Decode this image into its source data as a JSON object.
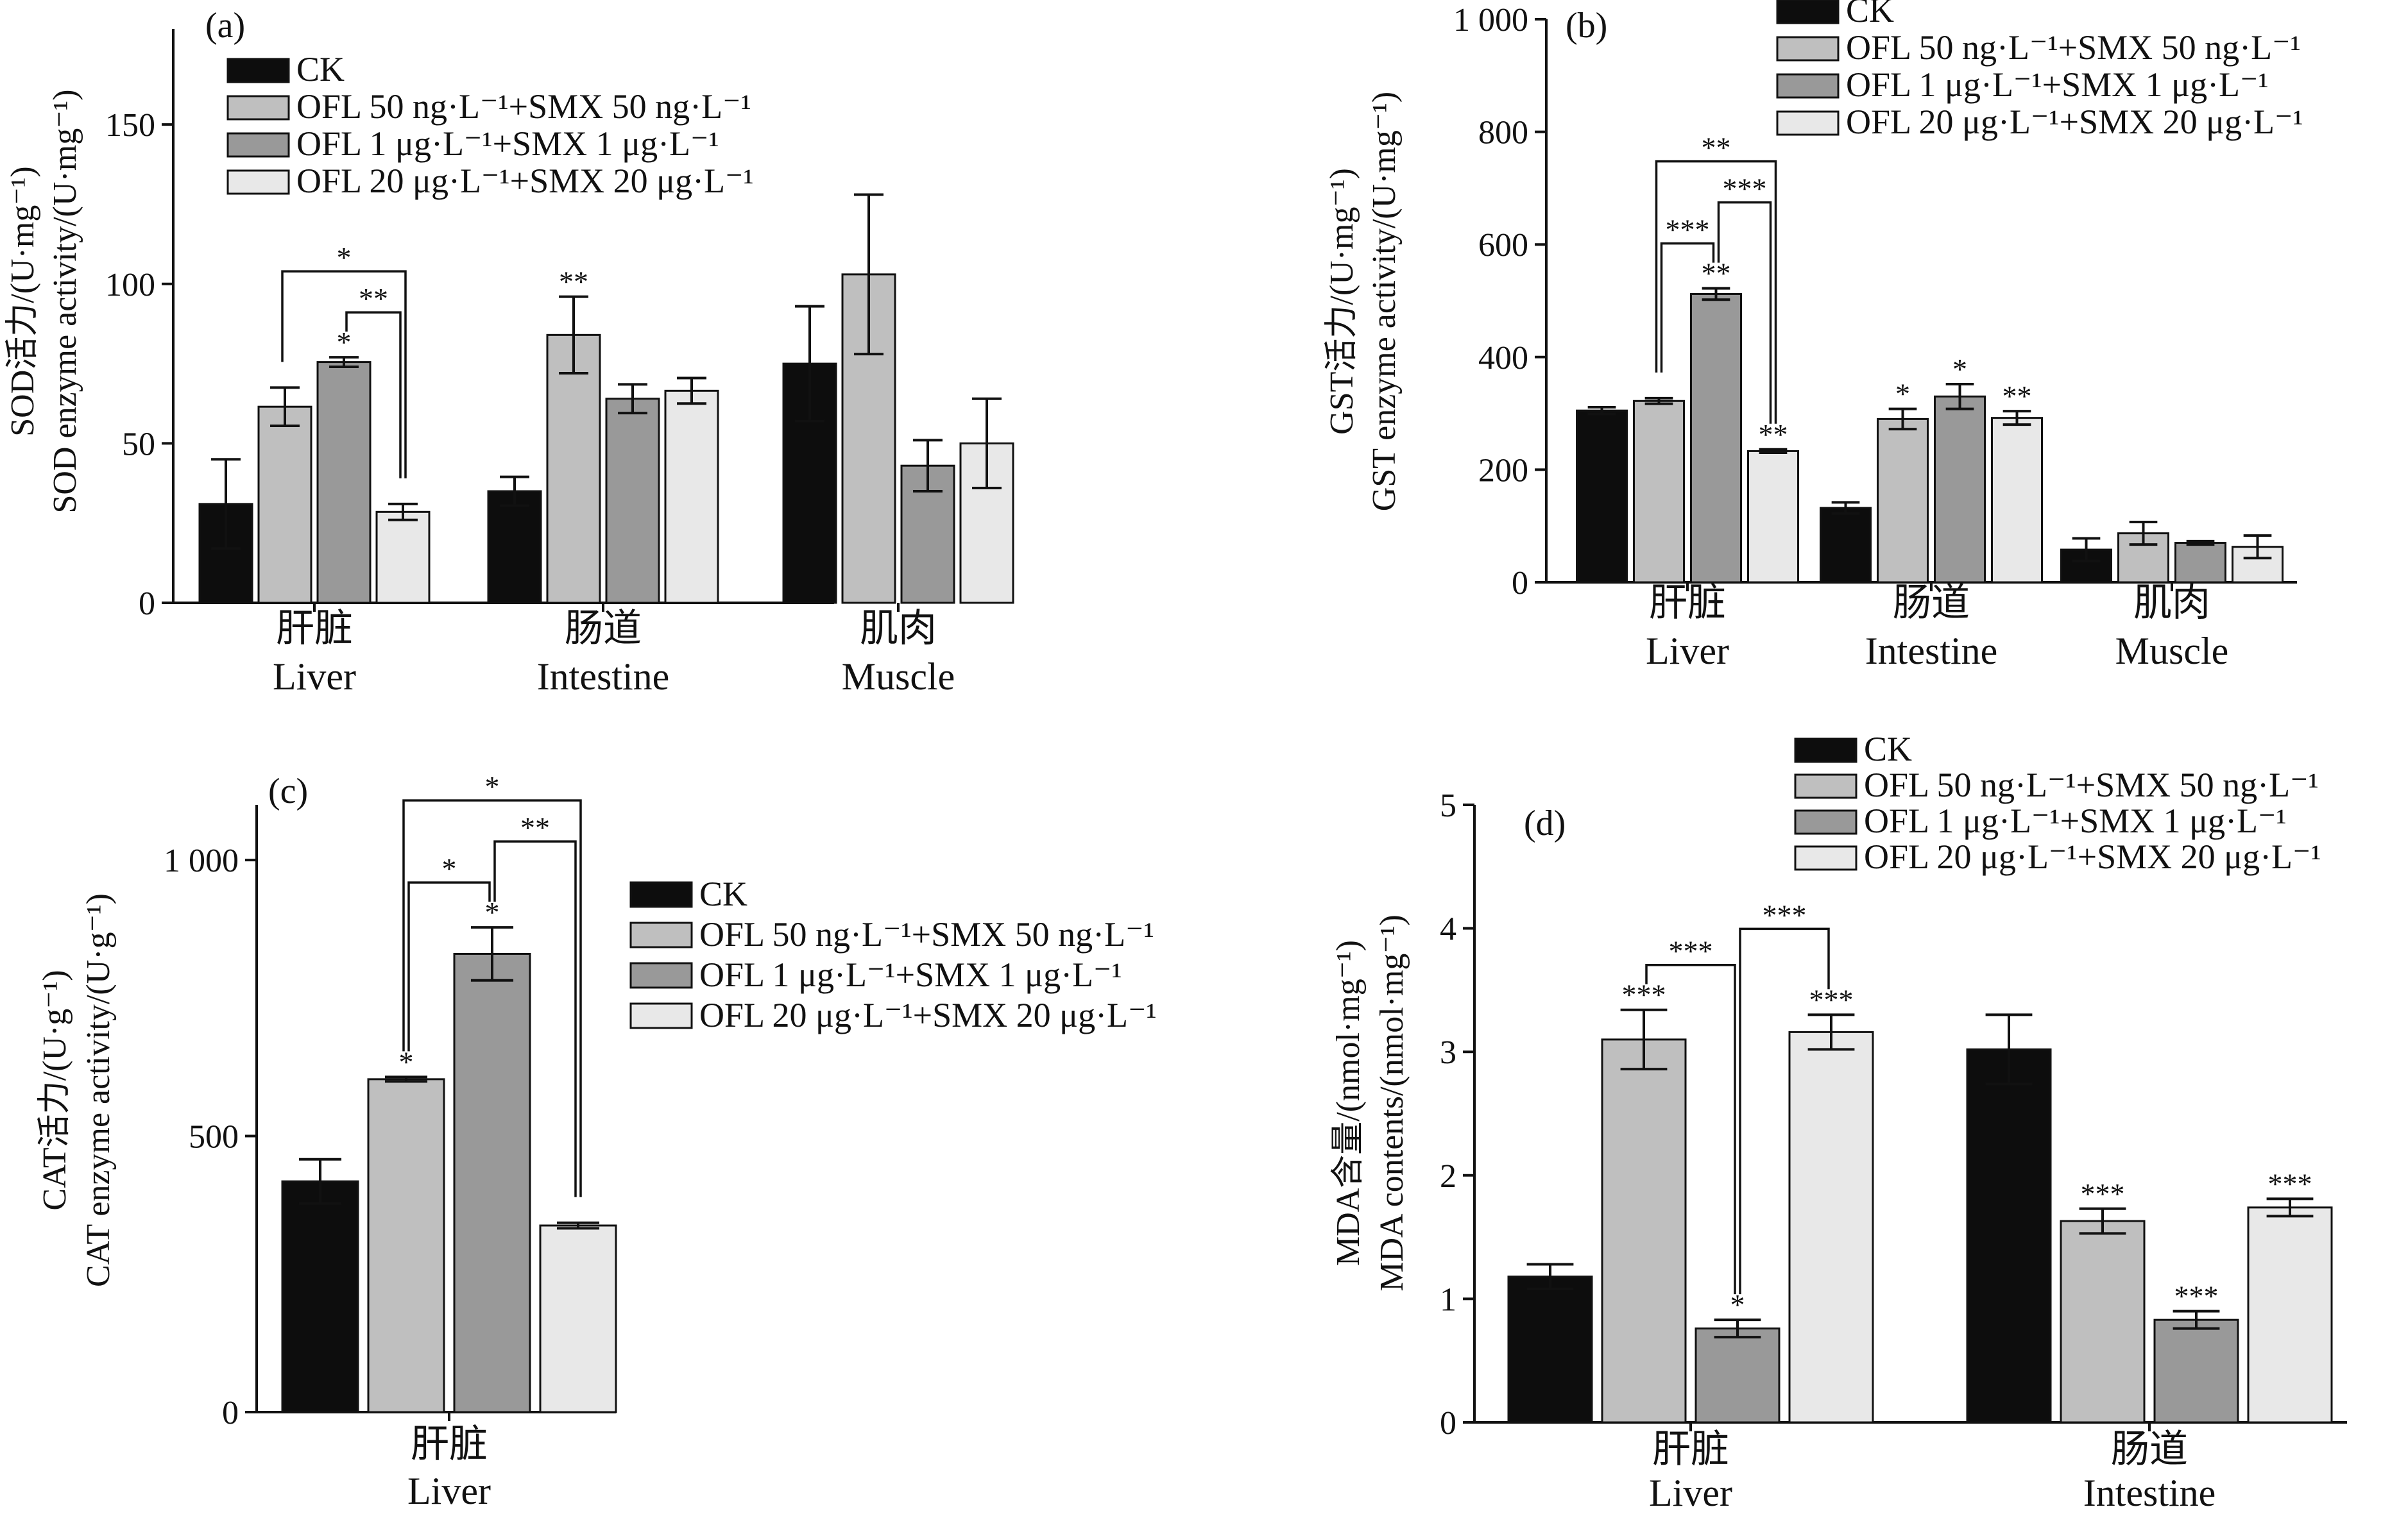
{
  "colors": {
    "CK": "#0d0d0d",
    "OFL50ng": "#bfbfbf",
    "OFL1ug": "#999999",
    "OFL20ug": "#e8e8e8"
  },
  "legend": [
    "CK",
    "OFL 50 ng·L⁻¹+SMX 50 ng·L⁻¹",
    "OFL 1 μg·L⁻¹+SMX 1 μg·L⁻¹",
    "OFL 20 μg·L⁻¹+SMX 20 μg·L⁻¹"
  ],
  "chart_data": [
    {
      "panel": "(a)",
      "type": "bar",
      "ylabel_cn": "SOD活力/(U·mg⁻¹)",
      "ylabel_en": "SOD enzyme activity/(U·mg⁻¹)",
      "ylim": [
        0,
        180
      ],
      "yticks": [
        "0",
        "50",
        "100",
        "150"
      ],
      "yticks_values": [
        0,
        50,
        100,
        150
      ],
      "categories": [
        {
          "cn": "肝脏",
          "en": "Liver"
        },
        {
          "cn": "肠道",
          "en": "Intestine"
        },
        {
          "cn": "肌肉",
          "en": "Muscle"
        }
      ],
      "series": [
        {
          "name": "CK",
          "values": [
            31,
            35,
            75
          ],
          "errors": [
            14,
            4.5,
            18
          ],
          "stars": [
            "",
            "",
            ""
          ]
        },
        {
          "name": "OFL 50 ng·L⁻¹+SMX 50 ng·L⁻¹",
          "values": [
            61.5,
            84,
            103
          ],
          "errors": [
            6,
            12,
            25
          ],
          "stars": [
            "",
            "**",
            ""
          ]
        },
        {
          "name": "OFL 1 μg·L⁻¹+SMX 1 μg·L⁻¹",
          "values": [
            75.5,
            64,
            43
          ],
          "errors": [
            1.5,
            4.5,
            8
          ],
          "stars": [
            "*",
            "",
            ""
          ]
        },
        {
          "name": "OFL 20 μg·L⁻¹+SMX 20 μg·L⁻¹",
          "values": [
            28.5,
            66.5,
            50
          ],
          "errors": [
            2.5,
            4,
            14
          ],
          "stars": [
            "",
            "",
            ""
          ]
        }
      ],
      "brackets": [
        {
          "category": 0,
          "from": 1,
          "to": 3,
          "label": "*"
        },
        {
          "category": 0,
          "from": 2,
          "to": 3,
          "label": "**"
        }
      ]
    },
    {
      "panel": "(b)",
      "type": "bar",
      "ylabel_cn": "GST活力/(U·mg⁻¹)",
      "ylabel_en": "GST enzyme activity/(U·mg⁻¹)",
      "ylim": [
        0,
        1000
      ],
      "yticks": [
        "0",
        "200",
        "400",
        "600",
        "800",
        "1 000"
      ],
      "yticks_values": [
        0,
        200,
        400,
        600,
        800,
        1000
      ],
      "categories": [
        {
          "cn": "肝脏",
          "en": "Liver"
        },
        {
          "cn": "肠道",
          "en": "Intestine"
        },
        {
          "cn": "肌肉",
          "en": "Muscle"
        }
      ],
      "series": [
        {
          "name": "CK",
          "values": [
            305,
            132,
            58
          ],
          "errors": [
            6,
            10,
            20
          ],
          "stars": [
            "",
            "",
            ""
          ]
        },
        {
          "name": "OFL 50 ng·L⁻¹+SMX 50 ng·L⁻¹",
          "values": [
            322,
            290,
            87
          ],
          "errors": [
            5,
            18,
            20
          ],
          "stars": [
            "",
            "*",
            ""
          ]
        },
        {
          "name": "OFL 1 μg·L⁻¹+SMX 1 μg·L⁻¹",
          "values": [
            512,
            330,
            70
          ],
          "errors": [
            10,
            22,
            3
          ],
          "stars": [
            "**",
            "*",
            ""
          ]
        },
        {
          "name": "OFL 20 μg·L⁻¹+SMX 20 μg·L⁻¹",
          "values": [
            233,
            292,
            63
          ],
          "errors": [
            3,
            12,
            20
          ],
          "stars": [
            "**",
            "**",
            ""
          ]
        }
      ],
      "brackets": [
        {
          "category": 0,
          "from": 1,
          "to": 2,
          "label": "***"
        },
        {
          "category": 0,
          "from": 2,
          "to": 3,
          "label": "***"
        },
        {
          "category": 0,
          "from": 1,
          "to": 3,
          "label": "**"
        }
      ]
    },
    {
      "panel": "(c)",
      "type": "bar",
      "ylabel_cn": "CAT活力/(U·g⁻¹)",
      "ylabel_en": "CAT enzyme activity/(U·g⁻¹)",
      "ylim": [
        0,
        1100
      ],
      "yticks": [
        "0",
        "500",
        "1 000"
      ],
      "yticks_values": [
        0,
        500,
        1000
      ],
      "categories": [
        {
          "cn": "肝脏",
          "en": "Liver"
        }
      ],
      "series": [
        {
          "name": "CK",
          "values": [
            418
          ],
          "errors": [
            40
          ],
          "stars": [
            ""
          ]
        },
        {
          "name": "OFL 50 ng·L⁻¹+SMX 50 ng·L⁻¹",
          "values": [
            603
          ],
          "errors": [
            4
          ],
          "stars": [
            "*"
          ]
        },
        {
          "name": "OFL 1 μg·L⁻¹+SMX 1 μg·L⁻¹",
          "values": [
            830
          ],
          "errors": [
            48
          ],
          "stars": [
            "*"
          ]
        },
        {
          "name": "OFL 20 μg·L⁻¹+SMX 20 μg·L⁻¹",
          "values": [
            338
          ],
          "errors": [
            5
          ],
          "stars": [
            ""
          ]
        }
      ],
      "brackets": [
        {
          "category": 0,
          "from": 1,
          "to": 2,
          "label": "*"
        },
        {
          "category": 0,
          "from": 2,
          "to": 3,
          "label": "**"
        },
        {
          "category": 0,
          "from": 1,
          "to": 3,
          "label": "*"
        }
      ]
    },
    {
      "panel": "(d)",
      "type": "bar",
      "ylabel_cn": "MDA含量/(nmol·mg⁻¹)",
      "ylabel_en": "MDA contents/(nmol·mg⁻¹)",
      "ylim": [
        0,
        5
      ],
      "yticks": [
        "0",
        "1",
        "2",
        "3",
        "4",
        "5"
      ],
      "yticks_values": [
        0,
        1,
        2,
        3,
        4,
        5
      ],
      "categories": [
        {
          "cn": "肝脏",
          "en": "Liver"
        },
        {
          "cn": "肠道",
          "en": "Intestine"
        }
      ],
      "series": [
        {
          "name": "CK",
          "values": [
            1.18,
            3.02
          ],
          "errors": [
            0.1,
            0.28
          ],
          "stars": [
            "",
            ""
          ]
        },
        {
          "name": "OFL 50 ng·L⁻¹+SMX 50 ng·L⁻¹",
          "values": [
            3.1,
            1.63
          ],
          "errors": [
            0.24,
            0.1
          ],
          "stars": [
            "***",
            "***"
          ]
        },
        {
          "name": "OFL 1 μg·L⁻¹+SMX 1 μg·L⁻¹",
          "values": [
            0.76,
            0.83
          ],
          "errors": [
            0.07,
            0.07
          ],
          "stars": [
            "*",
            "***"
          ]
        },
        {
          "name": "OFL 20 μg·L⁻¹+SMX 20 μg·L⁻¹",
          "values": [
            3.16,
            1.74
          ],
          "errors": [
            0.14,
            0.07
          ],
          "stars": [
            "***",
            "***"
          ]
        }
      ],
      "brackets": [
        {
          "category": 0,
          "from": 1,
          "to": 2,
          "label": "***"
        },
        {
          "category": 0,
          "from": 2,
          "to": 3,
          "label": "***"
        }
      ]
    }
  ]
}
